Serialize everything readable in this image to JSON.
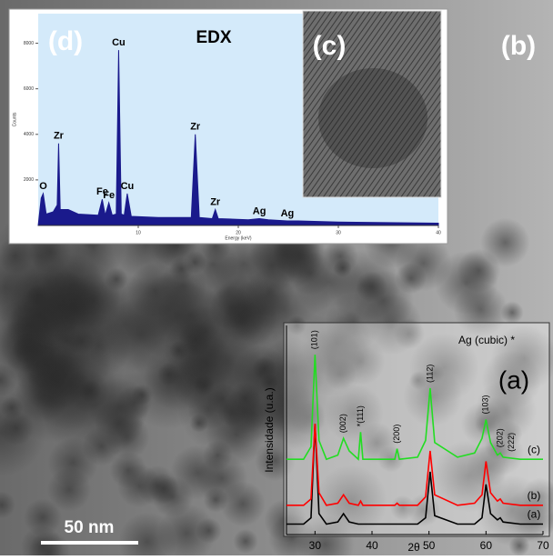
{
  "panel_labels": {
    "a": "(a)",
    "b": "(b)",
    "c": "(c)",
    "d": "(d)"
  },
  "scale_bar": "50 nm",
  "chart_data": [
    {
      "type": "area",
      "title": "EDX",
      "x_label": "Energy (keV)",
      "y_label": "Counts",
      "color": "#1a1a8c",
      "x": [
        0,
        0.3,
        0.5,
        0.8,
        1.5,
        1.9,
        2.04,
        2.2,
        3,
        4,
        6,
        6.4,
        6.7,
        7.06,
        7.4,
        7.8,
        8.04,
        8.3,
        8.6,
        8.9,
        9.3,
        12,
        15.3,
        15.7,
        16.1,
        17.4,
        17.7,
        18,
        21,
        22.1,
        23,
        24.9,
        26,
        30,
        40
      ],
      "values": [
        0,
        1200,
        1400,
        500,
        600,
        900,
        3600,
        700,
        700,
        500,
        450,
        1150,
        450,
        1000,
        450,
        500,
        7700,
        500,
        450,
        1400,
        400,
        350,
        350,
        4000,
        350,
        300,
        700,
        300,
        250,
        300,
        250,
        200,
        200,
        150,
        100
      ],
      "xlim": [
        0,
        40
      ],
      "ylim": [
        0,
        9300
      ],
      "xticks": [
        10,
        20,
        30,
        40
      ],
      "yticks": [
        2000,
        4000,
        6000,
        8000
      ],
      "annotations": [
        {
          "text": "O",
          "x": 0.5
        },
        {
          "text": "Zr",
          "x": 2.04
        },
        {
          "text": "Fe",
          "x": 6.4
        },
        {
          "text": "Fe",
          "x": 7.06
        },
        {
          "text": "Cu",
          "x": 8.04
        },
        {
          "text": "Cu",
          "x": 8.9
        },
        {
          "text": "Zr",
          "x": 15.7
        },
        {
          "text": "Zr",
          "x": 17.7
        },
        {
          "text": "Ag",
          "x": 22.1
        },
        {
          "text": "Ag",
          "x": 24.9
        }
      ]
    },
    {
      "type": "line",
      "x_label": "2θ",
      "y_label": "Intensidade (u.a.)",
      "note": "Ag (cubic) *",
      "x": [
        25,
        28,
        29.3,
        30,
        30.7,
        32,
        34,
        35,
        36,
        37.6,
        38,
        38.4,
        42,
        44,
        44.4,
        44.8,
        48,
        49.4,
        50.2,
        51,
        55,
        58,
        59.3,
        60,
        60.8,
        62,
        62.5,
        63,
        66,
        70
      ],
      "series": [
        {
          "name": "(a)",
          "color": "#000000",
          "values": [
            5,
            5,
            8,
            53,
            10,
            5,
            6,
            10,
            6,
            5,
            5,
            5,
            5,
            5,
            5,
            5,
            5,
            8,
            30,
            9,
            5,
            5,
            8,
            24,
            10,
            7,
            8,
            6,
            5,
            5
          ]
        },
        {
          "name": "(b)",
          "color": "#ff0000",
          "values": [
            14,
            14,
            17,
            53,
            20,
            14,
            15,
            19,
            15,
            14,
            16,
            14,
            14,
            14,
            15,
            14,
            14,
            18,
            40,
            19,
            14,
            15,
            19,
            35,
            20,
            16,
            17,
            15,
            14,
            14
          ]
        },
        {
          "name": "(c)",
          "color": "#22dd22",
          "values": [
            36,
            36,
            42,
            86,
            45,
            36,
            38,
            46,
            40,
            36,
            49,
            36,
            36,
            36,
            41,
            36,
            37,
            45,
            70,
            44,
            37,
            39,
            46,
            55,
            44,
            38,
            39,
            37,
            36,
            36
          ]
        }
      ],
      "xlim": [
        25,
        70
      ],
      "ylim": [
        0,
        100
      ],
      "xticks": [
        30,
        40,
        50,
        60,
        70
      ],
      "annotations": [
        {
          "text": "(101)",
          "x": 30
        },
        {
          "text": "(002)",
          "x": 35
        },
        {
          "text": "*(111)",
          "x": 38
        },
        {
          "text": "(200)",
          "x": 44.4
        },
        {
          "text": "(112)",
          "x": 50.2
        },
        {
          "text": "(103)",
          "x": 60
        },
        {
          "text": "(202)",
          "x": 62.5
        },
        {
          "text": "(222)",
          "x": 64.5
        }
      ]
    }
  ]
}
